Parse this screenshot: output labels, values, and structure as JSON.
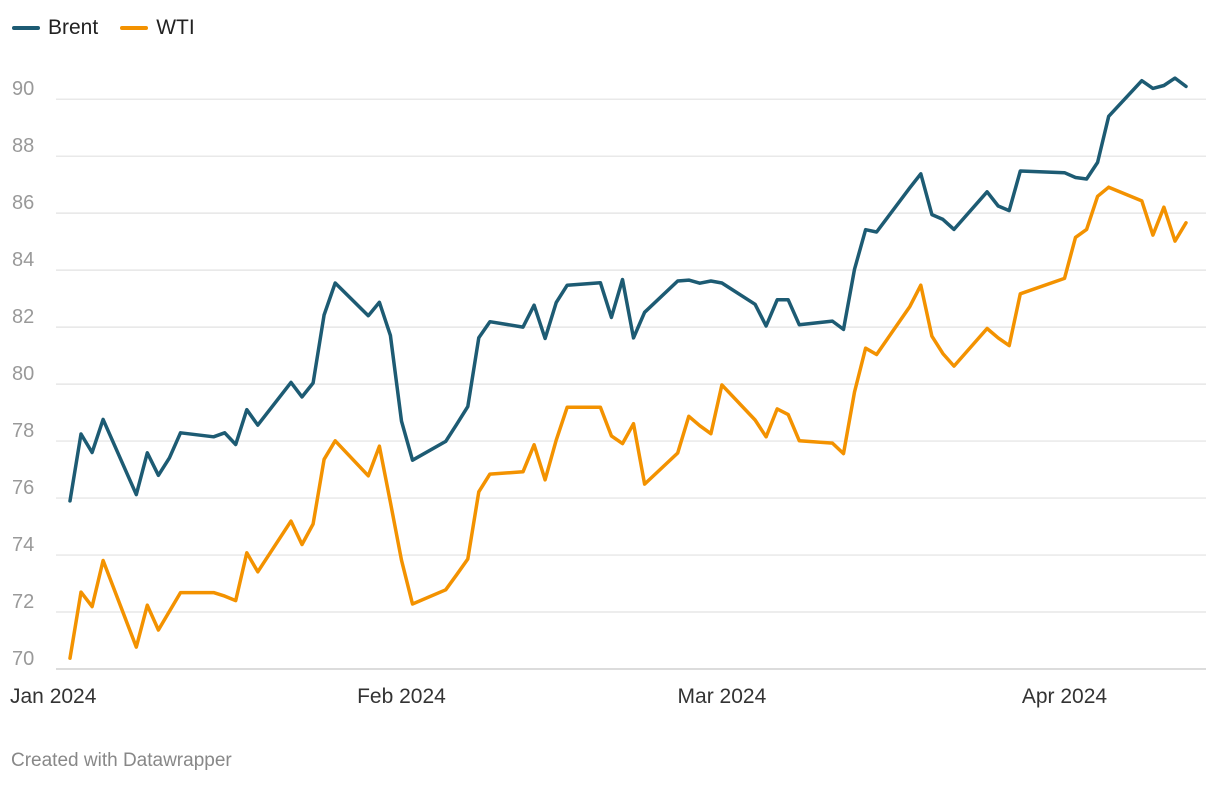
{
  "chart_data": {
    "type": "line",
    "title": "",
    "xlabel": "",
    "ylabel": "",
    "ylim": [
      70,
      91.2
    ],
    "y_ticks": [
      "70",
      "72",
      "74",
      "76",
      "78",
      "80",
      "82",
      "84",
      "86",
      "88",
      "90"
    ],
    "x_ticks": [
      {
        "date": "2024-01-02",
        "label": "Jan 2024"
      },
      {
        "date": "2024-02-01",
        "label": "Feb 2024"
      },
      {
        "date": "2024-03-01",
        "label": "Mar 2024"
      },
      {
        "date": "2024-04-01",
        "label": "Apr 2024"
      }
    ],
    "x_range": [
      "2024-01-02",
      "2024-04-12"
    ],
    "grid": true,
    "legend_position": "top-left",
    "x": [
      "2024-01-02",
      "2024-01-03",
      "2024-01-04",
      "2024-01-05",
      "2024-01-08",
      "2024-01-09",
      "2024-01-10",
      "2024-01-11",
      "2024-01-12",
      "2024-01-15",
      "2024-01-16",
      "2024-01-17",
      "2024-01-18",
      "2024-01-19",
      "2024-01-22",
      "2024-01-23",
      "2024-01-24",
      "2024-01-25",
      "2024-01-26",
      "2024-01-29",
      "2024-01-30",
      "2024-01-31",
      "2024-02-01",
      "2024-02-02",
      "2024-02-05",
      "2024-02-06",
      "2024-02-07",
      "2024-02-08",
      "2024-02-09",
      "2024-02-12",
      "2024-02-13",
      "2024-02-14",
      "2024-02-15",
      "2024-02-16",
      "2024-02-19",
      "2024-02-20",
      "2024-02-21",
      "2024-02-22",
      "2024-02-23",
      "2024-02-26",
      "2024-02-27",
      "2024-02-28",
      "2024-02-29",
      "2024-03-01",
      "2024-03-04",
      "2024-03-05",
      "2024-03-06",
      "2024-03-07",
      "2024-03-08",
      "2024-03-11",
      "2024-03-12",
      "2024-03-13",
      "2024-03-14",
      "2024-03-15",
      "2024-03-18",
      "2024-03-19",
      "2024-03-20",
      "2024-03-21",
      "2024-03-22",
      "2024-03-25",
      "2024-03-26",
      "2024-03-27",
      "2024-03-28",
      "2024-04-01",
      "2024-04-02",
      "2024-04-03",
      "2024-04-04",
      "2024-04-05",
      "2024-04-08",
      "2024-04-09",
      "2024-04-10",
      "2024-04-11",
      "2024-04-12"
    ],
    "series": [
      {
        "name": "Brent",
        "color": "#1d5b73",
        "values": [
          75.9,
          78.25,
          77.6,
          78.76,
          76.12,
          77.59,
          76.8,
          77.41,
          78.29,
          78.15,
          78.29,
          77.88,
          79.1,
          78.56,
          80.06,
          79.55,
          80.04,
          82.43,
          83.55,
          82.4,
          82.87,
          81.71,
          78.7,
          77.33,
          77.99,
          78.59,
          79.21,
          81.63,
          82.19,
          82.0,
          82.77,
          81.6,
          82.86,
          83.47,
          83.56,
          82.34,
          83.67,
          81.62,
          82.52,
          83.62,
          83.65,
          83.54,
          83.62,
          83.55,
          82.8,
          82.04,
          82.96,
          82.96,
          82.08,
          82.21,
          81.92,
          84.03,
          85.42,
          85.34,
          86.89,
          87.38,
          85.95,
          85.78,
          85.43,
          86.75,
          86.25,
          86.09,
          87.48,
          87.42,
          87.25,
          87.2,
          87.78,
          89.4,
          90.65,
          90.38,
          90.48,
          90.74,
          90.45
        ]
      },
      {
        "name": "WTI",
        "color": "#f39200",
        "values": [
          70.38,
          72.7,
          72.19,
          73.81,
          70.77,
          72.24,
          71.37,
          72.02,
          72.68,
          72.68,
          72.56,
          72.4,
          74.08,
          73.41,
          75.19,
          74.37,
          75.09,
          77.36,
          78.01,
          76.78,
          77.82,
          75.85,
          73.82,
          72.28,
          72.78,
          73.31,
          73.86,
          76.22,
          76.84,
          76.92,
          77.87,
          76.64,
          78.03,
          79.19,
          79.19,
          78.18,
          77.91,
          78.61,
          76.49,
          77.58,
          78.87,
          78.54,
          78.26,
          79.97,
          78.74,
          78.15,
          79.13,
          78.93,
          78.01,
          77.93,
          77.56,
          79.72,
          81.26,
          81.04,
          82.72,
          83.47,
          81.68,
          81.07,
          80.63,
          81.95,
          81.62,
          81.35,
          83.17,
          83.71,
          85.15,
          85.43,
          86.59,
          86.91,
          86.43,
          85.23,
          86.21,
          85.02,
          85.66
        ]
      }
    ]
  },
  "footer": "Created with Datawrapper"
}
